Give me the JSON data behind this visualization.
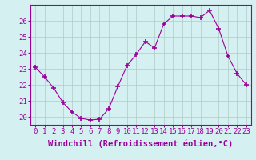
{
  "x": [
    0,
    1,
    2,
    3,
    4,
    5,
    6,
    7,
    8,
    9,
    10,
    11,
    12,
    13,
    14,
    15,
    16,
    17,
    18,
    19,
    20,
    21,
    22,
    23
  ],
  "y": [
    23.1,
    22.5,
    21.8,
    20.9,
    20.3,
    19.9,
    19.8,
    19.85,
    20.5,
    21.9,
    23.2,
    23.9,
    24.7,
    24.3,
    25.8,
    26.3,
    26.3,
    26.3,
    26.2,
    26.65,
    25.5,
    23.8,
    22.7,
    22.0
  ],
  "line_color": "#990099",
  "marker": "+",
  "marker_size": 4,
  "marker_lw": 1.2,
  "bg_color": "#d5f0f0",
  "grid_color": "#b0c8c8",
  "xlabel": "Windchill (Refroidissement éolien,°C)",
  "xlabel_fontsize": 7.5,
  "tick_fontsize": 6.5,
  "ylim": [
    19.5,
    27.0
  ],
  "xlim": [
    -0.5,
    23.5
  ],
  "yticks": [
    20,
    21,
    22,
    23,
    24,
    25,
    26
  ],
  "xticks": [
    0,
    1,
    2,
    3,
    4,
    5,
    6,
    7,
    8,
    9,
    10,
    11,
    12,
    13,
    14,
    15,
    16,
    17,
    18,
    19,
    20,
    21,
    22,
    23
  ],
  "xtick_labels": [
    "0",
    "1",
    "2",
    "3",
    "4",
    "5",
    "6",
    "7",
    "8",
    "9",
    "10",
    "11",
    "12",
    "13",
    "14",
    "15",
    "16",
    "17",
    "18",
    "19",
    "20",
    "21",
    "22",
    "23"
  ]
}
